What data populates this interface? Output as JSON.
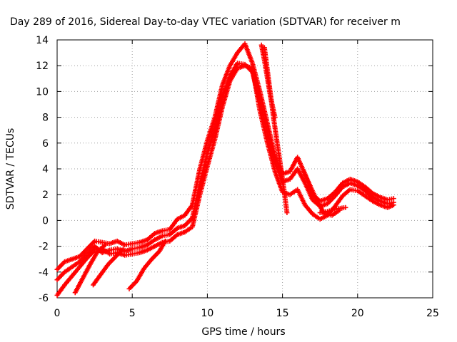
{
  "chart_data": {
    "type": "scatter",
    "title": "Day 289 of 2016, Sidereal Day-to-day VTEC variation (SDTVAR) for receiver m",
    "xlabel": "GPS time / hours",
    "ylabel": "SDTVAR / TECUs",
    "xlim": [
      0,
      25
    ],
    "ylim": [
      -6,
      14
    ],
    "xticks": [
      "0",
      "5",
      "10",
      "15",
      "20",
      "25"
    ],
    "yticks": [
      "-6",
      "-4",
      "-2",
      "0",
      "2",
      "4",
      "6",
      "8",
      "10",
      "12",
      "14"
    ],
    "grid": true,
    "marker": "plus",
    "color": "#ff0000",
    "series": [
      {
        "x": [
          0.0,
          0.5,
          1.0,
          1.5,
          2.0,
          2.5,
          3.0,
          3.5,
          4.0,
          4.5,
          5.0,
          5.5,
          6.0,
          6.5,
          7.0,
          7.5,
          8.0,
          8.5,
          9.0,
          9.5,
          10.0,
          10.5,
          11.0,
          11.5,
          12.0,
          12.5,
          13.0,
          13.5,
          14.0,
          14.5,
          15.0,
          15.5,
          16.0,
          16.5,
          17.0,
          17.5,
          18.0,
          18.5,
          19.0,
          19.5,
          20.0,
          20.5,
          21.0,
          21.5,
          22.0,
          22.4
        ],
        "y": [
          -3.8,
          -3.2,
          -3.0,
          -2.8,
          -2.2,
          -1.6,
          -1.7,
          -1.8,
          -1.6,
          -1.9,
          -1.8,
          -1.7,
          -1.5,
          -1.0,
          -0.8,
          -0.7,
          0.1,
          0.4,
          1.2,
          4.0,
          6.2,
          8.0,
          10.5,
          12.0,
          13.0,
          13.7,
          12.2,
          10.0,
          7.5,
          5.0,
          3.6,
          3.8,
          4.9,
          3.6,
          2.0,
          1.5,
          1.7,
          2.2,
          2.9,
          3.2,
          3.0,
          2.6,
          2.1,
          1.8,
          1.6,
          1.7
        ]
      },
      {
        "x": [
          0.0,
          0.5,
          1.0,
          1.5,
          2.0,
          2.5,
          3.0,
          3.5,
          4.0,
          4.5,
          5.0,
          5.5,
          6.0,
          6.5,
          7.0,
          7.5,
          8.0,
          8.5,
          9.0,
          9.5,
          10.0,
          10.5,
          11.0,
          11.5,
          12.0,
          12.5,
          13.0,
          13.5,
          14.0,
          14.5,
          15.0,
          15.5,
          16.0,
          16.5,
          17.0,
          17.5,
          18.0,
          18.5,
          19.0,
          19.5,
          20.0,
          20.5,
          21.0,
          21.5,
          22.0,
          22.4
        ],
        "y": [
          -4.6,
          -4.0,
          -3.6,
          -3.2,
          -2.6,
          -2.0,
          -2.5,
          -2.3,
          -2.2,
          -2.4,
          -2.2,
          -2.1,
          -1.9,
          -1.5,
          -1.2,
          -1.1,
          -0.6,
          -0.4,
          0.2,
          2.8,
          5.2,
          7.2,
          9.6,
          11.2,
          12.2,
          12.1,
          11.5,
          9.2,
          6.8,
          4.5,
          3.0,
          3.2,
          4.0,
          2.9,
          1.6,
          1.1,
          1.3,
          1.9,
          2.6,
          2.9,
          2.7,
          2.3,
          1.8,
          1.5,
          1.3,
          1.4
        ]
      },
      {
        "x": [
          0.0,
          0.5,
          1.0,
          1.5,
          2.0,
          2.5,
          3.0,
          3.5,
          4.0,
          4.5,
          5.0,
          5.5,
          6.0,
          6.5,
          7.0,
          7.5,
          8.0,
          8.5,
          9.0,
          9.5,
          10.0,
          10.5,
          11.0,
          11.5,
          12.0,
          12.5,
          13.0,
          13.5,
          14.0,
          14.5,
          15.0,
          15.5,
          16.0,
          16.5,
          17.0,
          17.5,
          18.0,
          18.5,
          19.0,
          19.5,
          20.0,
          20.5,
          21.0,
          21.5,
          22.0,
          22.4
        ],
        "y": [
          -5.8,
          -5.0,
          -4.3,
          -3.6,
          -2.9,
          -2.3,
          -2.2,
          -2.6,
          -2.5,
          -2.7,
          -2.6,
          -2.5,
          -2.3,
          -2.0,
          -1.7,
          -1.6,
          -1.1,
          -0.9,
          -0.5,
          2.0,
          4.2,
          6.3,
          8.8,
          10.8,
          11.8,
          12.0,
          11.8,
          8.5,
          6.0,
          3.8,
          2.2,
          2.0,
          2.4,
          1.2,
          0.5,
          0.1,
          0.4,
          1.1,
          1.9,
          2.4,
          2.3,
          1.9,
          1.5,
          1.2,
          1.0,
          1.2
        ]
      },
      {
        "x": [
          1.2,
          1.7,
          2.2,
          2.7,
          3.2
        ],
        "y": [
          -5.6,
          -4.5,
          -3.4,
          -2.4,
          -1.9
        ]
      },
      {
        "x": [
          2.4,
          2.9,
          3.4,
          3.9,
          4.4
        ],
        "y": [
          -5.0,
          -4.2,
          -3.4,
          -2.8,
          -2.2
        ]
      },
      {
        "x": [
          4.8,
          5.3,
          5.8,
          6.3,
          6.8,
          7.2
        ],
        "y": [
          -5.3,
          -4.7,
          -3.7,
          -3.0,
          -2.4,
          -1.6
        ]
      },
      {
        "x": [
          13.6,
          13.8,
          14.0,
          14.2,
          14.5
        ],
        "y": [
          13.6,
          12.4,
          11.0,
          9.6,
          8.0
        ]
      },
      {
        "x": [
          13.8,
          14.0,
          14.4,
          14.8,
          15.1,
          15.3
        ],
        "y": [
          13.4,
          11.6,
          8.0,
          4.8,
          2.4,
          0.6
        ]
      },
      {
        "x": [
          16.4,
          16.8,
          17.3,
          17.8,
          18.3,
          18.8
        ],
        "y": [
          3.8,
          2.8,
          1.5,
          0.5,
          0.4,
          0.8
        ]
      },
      {
        "x": [
          17.5,
          18.0,
          18.6,
          19.2
        ],
        "y": [
          0.6,
          0.7,
          0.9,
          1.0
        ]
      }
    ]
  }
}
